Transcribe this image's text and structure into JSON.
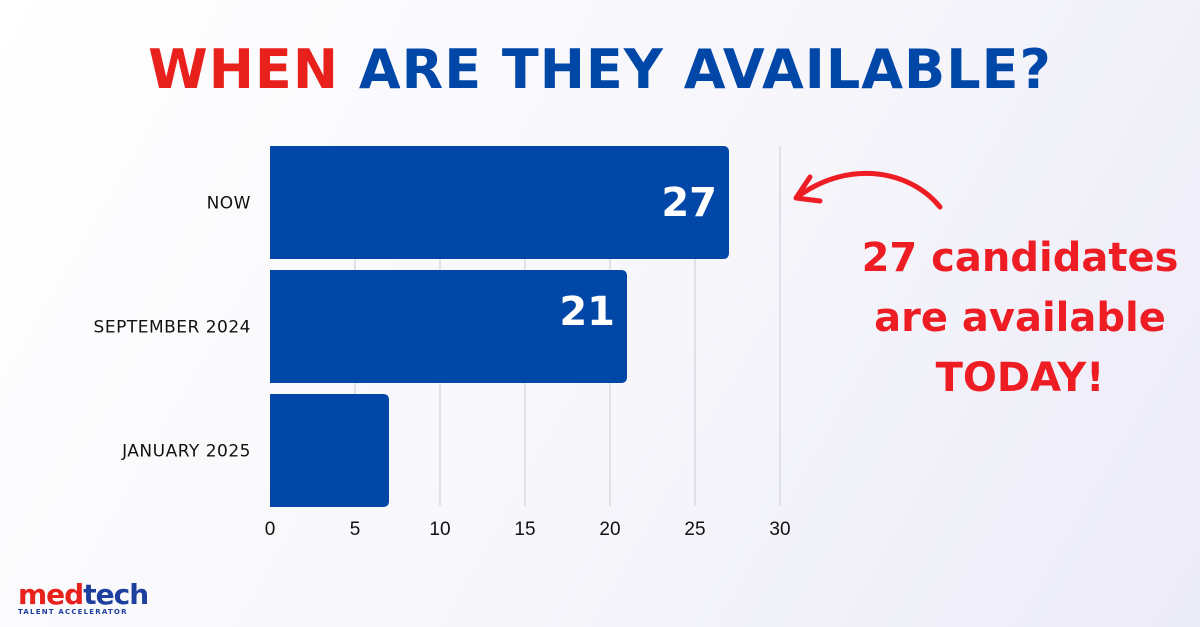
{
  "title": {
    "word1": "WHEN",
    "word2": "ARE THEY AVAILABLE?"
  },
  "annotation": {
    "lines": [
      "27 candidates",
      "are available",
      "TODAY!"
    ]
  },
  "logo": {
    "name_part1": "med",
    "name_part2": "tech",
    "tagline": "TALENT ACCELERATOR"
  },
  "colors": {
    "bar": "#0047a8",
    "title_red": "#e8211c",
    "title_blue": "#0047a8",
    "annotation": "#ee1d23",
    "gridline": "#d9d9e3"
  },
  "chart_data": {
    "type": "bar",
    "orientation": "horizontal",
    "categories": [
      "NOW",
      "SEPTEMBER 2024",
      "JANUARY 2025"
    ],
    "values": [
      27,
      21,
      7
    ],
    "data_labels": [
      "27",
      "21",
      ""
    ],
    "xlim": [
      0,
      30
    ],
    "xticks": [
      0,
      5,
      10,
      15,
      20,
      25,
      30
    ],
    "grid": "vertical",
    "legend": "none"
  }
}
